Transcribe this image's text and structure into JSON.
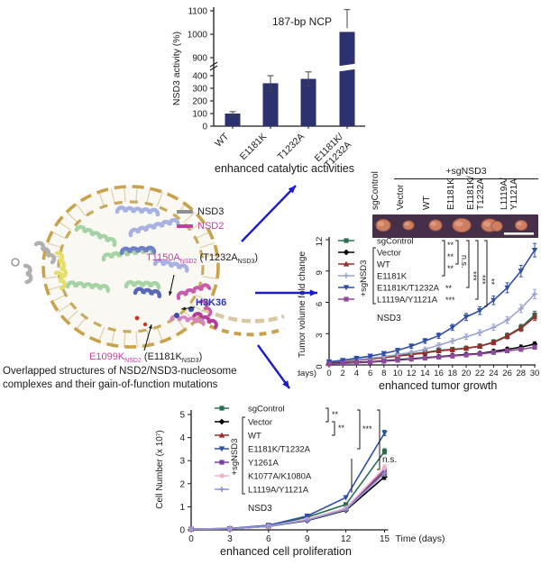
{
  "structure_panel": {
    "legend": [
      {
        "label": "NSD3",
        "color": "#8f8f8f"
      },
      {
        "label": "NSD2",
        "color": "#c23fa4"
      }
    ],
    "mutation_labels": {
      "t1150a": {
        "parts": [
          {
            "t": "T1150A",
            "c": "#c23fa4"
          },
          {
            "t": "NSD2",
            "c": "#c23fa4",
            "sub": true
          },
          {
            "t": " (T1232A",
            "c": "#1a1a1a"
          },
          {
            "t": "NSD3",
            "c": "#1a1a1a",
            "sub": true
          },
          {
            "t": ")",
            "c": "#1a1a1a"
          }
        ]
      },
      "h3k36": {
        "parts": [
          {
            "t": "H3K36",
            "c": "#2a35c0"
          }
        ]
      },
      "e1099k": {
        "parts": [
          {
            "t": "E1099K",
            "c": "#c23fa4"
          },
          {
            "t": "NSD2",
            "c": "#c23fa4",
            "sub": true
          },
          {
            "t": " (E1181K",
            "c": "#1a1a1a"
          },
          {
            "t": "NSD3",
            "c": "#1a1a1a",
            "sub": true
          },
          {
            "t": ")",
            "c": "#1a1a1a"
          }
        ]
      }
    },
    "caption_lines": [
      "Overlapped structures of NSD2/NSD3-nucleosome",
      "complexes and their gain-of-function mutations"
    ]
  },
  "tumor_panel": {
    "group_label": "+sgNSD3",
    "lanes": [
      [
        "sgControl"
      ],
      [
        "Vector"
      ],
      [
        "WT"
      ],
      [
        "E1181K"
      ],
      [
        "E1181K/",
        "T1232A"
      ],
      [
        "L1119A/",
        "Y1121A"
      ]
    ],
    "background": "#463049",
    "tumor_color": "#cd7f63",
    "tumor_edge": "#a85a42",
    "scale_bar_color": "#ffffff"
  },
  "chart_data": [
    {
      "type": "bar",
      "title": "187-bp NCP",
      "ylabel": "NSD3 activity (%)",
      "categories": [
        [
          "WT"
        ],
        [
          "E1181K"
        ],
        [
          "T1232A"
        ],
        [
          "E1181K/",
          "T1232A"
        ]
      ],
      "values": [
        100,
        340,
        375,
        1010
      ],
      "errors": [
        15,
        60,
        55,
        95
      ],
      "yticks_lower": [
        0,
        100,
        200,
        300,
        400
      ],
      "yticks_upper": [
        900,
        1000,
        1100
      ],
      "axis_break_between": [
        400,
        900
      ],
      "bar_color": "#2c3170",
      "caption": "enhanced catalytic activities"
    },
    {
      "type": "line",
      "ylabel": "Tumor volume fold change",
      "x_prefix": "(days)",
      "x": [
        0,
        2,
        4,
        6,
        8,
        10,
        12,
        14,
        16,
        18,
        20,
        22,
        24,
        26,
        28,
        30
      ],
      "yticks": [
        0,
        3,
        6,
        9,
        12
      ],
      "ylim": [
        0,
        12
      ],
      "annotation": "NSD3",
      "group_label": "+sgNSD3",
      "caption": "enhanced tumor growth",
      "series": [
        {
          "name": "sgControl",
          "color": "#2a7050",
          "values": [
            0.3,
            0.4,
            0.5,
            0.6,
            0.75,
            0.9,
            1.05,
            1.2,
            1.4,
            1.5,
            1.6,
            1.8,
            2.2,
            2.8,
            3.6,
            4.8
          ]
        },
        {
          "name": "Vector",
          "color": "#000000",
          "values": [
            0.15,
            0.2,
            0.25,
            0.3,
            0.4,
            0.5,
            0.6,
            0.7,
            0.8,
            0.9,
            1.0,
            1.1,
            1.3,
            1.5,
            1.7,
            2.0
          ]
        },
        {
          "name": "WT",
          "color": "#9b2b2b",
          "values": [
            0.25,
            0.35,
            0.45,
            0.55,
            0.7,
            0.85,
            1.0,
            1.15,
            1.35,
            1.45,
            1.6,
            1.8,
            2.15,
            2.75,
            3.5,
            4.6
          ]
        },
        {
          "name": "E1181K",
          "color": "#9aa3d2",
          "values": [
            0.3,
            0.4,
            0.5,
            0.65,
            0.8,
            1.0,
            1.2,
            1.5,
            1.9,
            2.3,
            2.7,
            3.1,
            3.6,
            4.3,
            5.4,
            6.8
          ]
        },
        {
          "name": "E1181K/T1232A",
          "color": "#2e4fa5",
          "values": [
            0.3,
            0.45,
            0.65,
            0.85,
            1.1,
            1.4,
            1.8,
            2.3,
            2.8,
            3.6,
            4.6,
            5.2,
            6.2,
            7.4,
            9.0,
            11.0
          ]
        },
        {
          "name": "L1119A/Y1121A",
          "color": "#8d4a9e",
          "values": [
            0.1,
            0.15,
            0.2,
            0.25,
            0.35,
            0.45,
            0.55,
            0.65,
            0.75,
            0.85,
            0.95,
            1.05,
            1.2,
            1.35,
            1.5,
            1.7
          ]
        }
      ],
      "significance": {
        "stacked": [
          "**",
          "**",
          "**"
        ],
        "ns": "n.s.",
        "outer": [
          "***",
          "***",
          "**"
        ],
        "row5": "**",
        "row6": "***"
      }
    },
    {
      "type": "line",
      "ylabel": "Cell Number (x 10⁷)",
      "xlabel": "Time (days)",
      "x": [
        0,
        3,
        6,
        9,
        12,
        15
      ],
      "yticks": [
        0,
        1,
        2,
        3,
        4,
        5
      ],
      "ylim": [
        0,
        5
      ],
      "annotation": "NSD3",
      "group_label": "+sgNSD3",
      "caption": "enhanced cell proliferation",
      "series": [
        {
          "name": "sgControl",
          "color": "#2a7050",
          "values": [
            0.03,
            0.06,
            0.18,
            0.55,
            1.1,
            3.4
          ]
        },
        {
          "name": "Vector",
          "color": "#000000",
          "values": [
            0.03,
            0.05,
            0.15,
            0.4,
            0.85,
            2.3
          ]
        },
        {
          "name": "WT",
          "color": "#9b2b2b",
          "values": [
            0.03,
            0.05,
            0.16,
            0.45,
            0.9,
            2.5
          ]
        },
        {
          "name": "E1181K/T1232A",
          "color": "#2e4fa5",
          "values": [
            0.03,
            0.06,
            0.2,
            0.6,
            1.4,
            4.2
          ]
        },
        {
          "name": "Y1261A",
          "color": "#7c3f9b",
          "values": [
            0.03,
            0.05,
            0.16,
            0.45,
            0.92,
            2.6
          ]
        },
        {
          "name": "K1077A/K1080A",
          "color": "#edb3cb",
          "values": [
            0.03,
            0.05,
            0.16,
            0.46,
            0.95,
            2.7
          ]
        },
        {
          "name": "L1119A/Y1121A",
          "color": "#8b93d8",
          "values": [
            0.03,
            0.05,
            0.15,
            0.42,
            0.88,
            2.45
          ]
        }
      ],
      "significance": {
        "b1": "**",
        "b2": "**",
        "b3": "***",
        "b4": "n.s."
      }
    }
  ],
  "arrows_color": "#1b1bcf"
}
